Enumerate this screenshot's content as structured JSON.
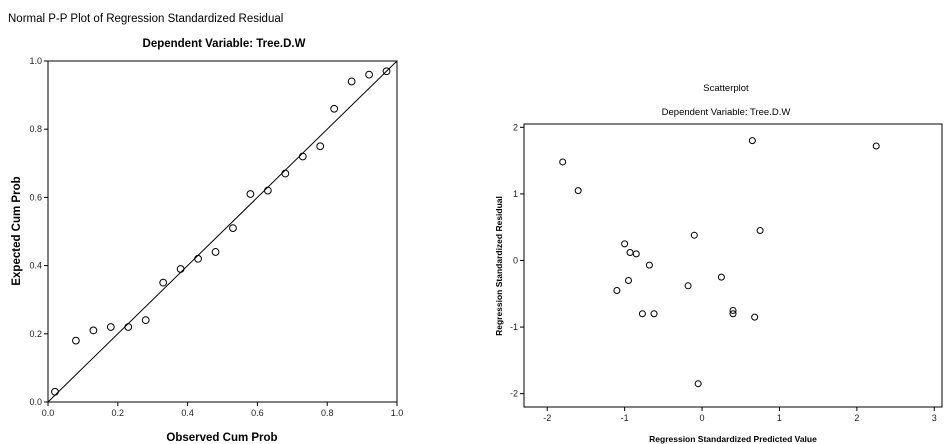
{
  "colors": {
    "frame": "#000000",
    "marker": "#000000",
    "background": "#ffffff"
  },
  "chart_data": [
    {
      "type": "scatter",
      "title": "Normal P-P Plot of Regression Standardized Residual",
      "subtitle": "Dependent Variable: Tree.D.W",
      "xlabel": "Observed Cum Prob",
      "ylabel": "Expected Cum Prob",
      "xlim": [
        0,
        1
      ],
      "ylim": [
        0,
        1
      ],
      "xticks": [
        {
          "value": 0.0,
          "label": "0.0"
        },
        {
          "value": 0.2,
          "label": "0.2"
        },
        {
          "value": 0.4,
          "label": "0.4"
        },
        {
          "value": 0.6,
          "label": "0.6"
        },
        {
          "value": 0.8,
          "label": "0.8"
        },
        {
          "value": 1.0,
          "label": "1.0"
        }
      ],
      "yticks": [
        {
          "value": 0.0,
          "label": "0.0"
        },
        {
          "value": 0.2,
          "label": "0.2"
        },
        {
          "value": 0.4,
          "label": "0.4"
        },
        {
          "value": 0.6,
          "label": "0.6"
        },
        {
          "value": 0.8,
          "label": "0.8"
        },
        {
          "value": 1.0,
          "label": "1.0"
        }
      ],
      "reference_line": [
        [
          0,
          0
        ],
        [
          1,
          1
        ]
      ],
      "grid": false,
      "points": [
        {
          "x": 0.02,
          "y": 0.03
        },
        {
          "x": 0.08,
          "y": 0.18
        },
        {
          "x": 0.13,
          "y": 0.21
        },
        {
          "x": 0.18,
          "y": 0.22
        },
        {
          "x": 0.23,
          "y": 0.22
        },
        {
          "x": 0.28,
          "y": 0.24
        },
        {
          "x": 0.33,
          "y": 0.35
        },
        {
          "x": 0.38,
          "y": 0.39
        },
        {
          "x": 0.43,
          "y": 0.42
        },
        {
          "x": 0.48,
          "y": 0.44
        },
        {
          "x": 0.53,
          "y": 0.51
        },
        {
          "x": 0.58,
          "y": 0.61
        },
        {
          "x": 0.63,
          "y": 0.62
        },
        {
          "x": 0.68,
          "y": 0.67
        },
        {
          "x": 0.73,
          "y": 0.72
        },
        {
          "x": 0.78,
          "y": 0.75
        },
        {
          "x": 0.82,
          "y": 0.86
        },
        {
          "x": 0.87,
          "y": 0.94
        },
        {
          "x": 0.92,
          "y": 0.96
        },
        {
          "x": 0.97,
          "y": 0.97
        }
      ]
    },
    {
      "type": "scatter",
      "title": "Scatterplot",
      "subtitle": "Dependent Variable: Tree.D.W",
      "xlabel": "Regression Standardized Predicted Value",
      "ylabel": "Regression Standardized Residual",
      "xlim": [
        -2.3,
        3.1
      ],
      "ylim": [
        -2.2,
        2.05
      ],
      "xticks": [
        {
          "value": -2,
          "label": "-2"
        },
        {
          "value": -1,
          "label": "-1"
        },
        {
          "value": 0,
          "label": "0"
        },
        {
          "value": 1,
          "label": "1"
        },
        {
          "value": 2,
          "label": "2"
        },
        {
          "value": 3,
          "label": "3"
        }
      ],
      "yticks": [
        {
          "value": 2,
          "label": "2"
        },
        {
          "value": 1,
          "label": "1"
        },
        {
          "value": 0,
          "label": "0"
        },
        {
          "value": -1,
          "label": "-1"
        },
        {
          "value": -2,
          "label": "-2"
        }
      ],
      "grid": false,
      "points": [
        {
          "x": -1.8,
          "y": 1.48
        },
        {
          "x": -1.6,
          "y": 1.05
        },
        {
          "x": -1.1,
          "y": -0.45
        },
        {
          "x": -1.0,
          "y": 0.25
        },
        {
          "x": -0.95,
          "y": -0.3
        },
        {
          "x": -0.93,
          "y": 0.12
        },
        {
          "x": -0.85,
          "y": 0.1
        },
        {
          "x": -0.77,
          "y": -0.8
        },
        {
          "x": -0.68,
          "y": -0.07
        },
        {
          "x": -0.62,
          "y": -0.8
        },
        {
          "x": -0.1,
          "y": 0.38
        },
        {
          "x": -0.18,
          "y": -0.38
        },
        {
          "x": -0.05,
          "y": -1.85
        },
        {
          "x": 0.25,
          "y": -0.25
        },
        {
          "x": 0.4,
          "y": -0.75
        },
        {
          "x": 0.4,
          "y": -0.8
        },
        {
          "x": 0.68,
          "y": -0.85
        },
        {
          "x": 0.65,
          "y": 1.8
        },
        {
          "x": 0.75,
          "y": 0.45
        },
        {
          "x": 2.25,
          "y": 1.72
        }
      ]
    }
  ]
}
